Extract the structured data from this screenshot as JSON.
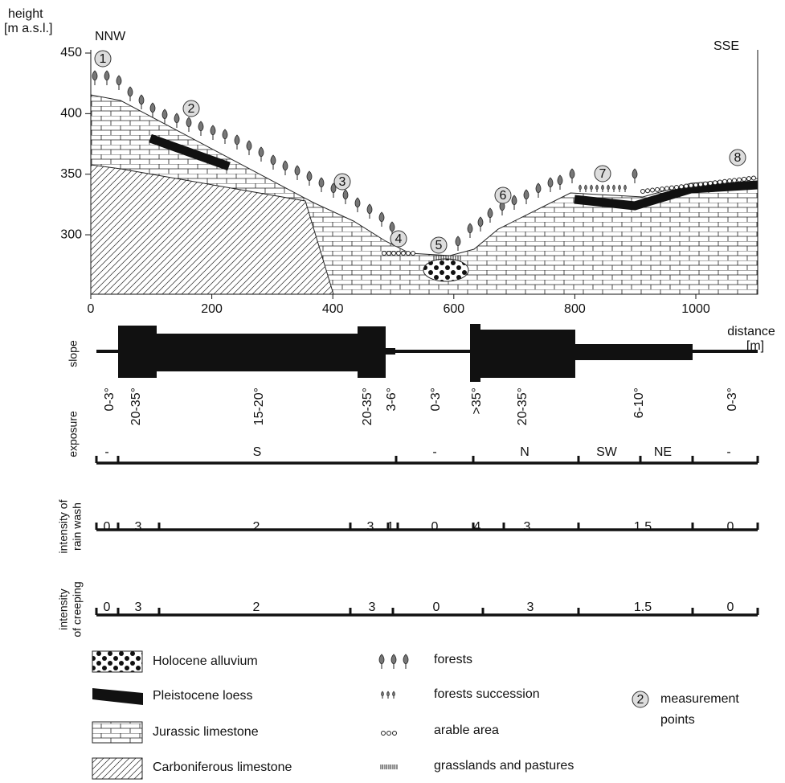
{
  "profile": {
    "y_axis_label": [
      "height",
      "[m a.s.l.]"
    ],
    "yticks": [
      300,
      350,
      400,
      450
    ],
    "xticks": [
      0,
      200,
      400,
      600,
      800,
      1000
    ],
    "x_axis_label": [
      "distance",
      "[m]"
    ],
    "directions": [
      "NNW",
      "SSE"
    ],
    "points": [
      1,
      2,
      3,
      4,
      5,
      6,
      7,
      8
    ]
  },
  "slope": {
    "label": "slope",
    "classes": [
      "0-3°",
      "20-35°",
      "15-20°",
      "20-35°",
      "3-6°",
      "0-3°",
      ">35°",
      "20-35°",
      "6-10°",
      "0-3°"
    ]
  },
  "exposure": {
    "label": "exposure",
    "values": [
      "-",
      "S",
      "-",
      "N",
      "SW",
      "NE",
      "-"
    ]
  },
  "rain_wash": {
    "label": [
      "intensity of",
      "rain wash"
    ],
    "values": [
      0,
      3,
      2,
      3,
      1,
      0,
      4,
      3,
      1.5,
      0
    ]
  },
  "creeping": {
    "label": [
      "intensity",
      "of creeping"
    ],
    "values": [
      0,
      3,
      2,
      3,
      0,
      3,
      1.5,
      0
    ]
  },
  "legend": {
    "geology": [
      "Holocene alluvium",
      "Pleistocene loess",
      "Jurassic limestone",
      "Carboniferous limestone"
    ],
    "land_use": [
      "forests",
      "forests succession",
      "arable area",
      "grasslands and pastures"
    ],
    "point_symbol": 2,
    "point_label": [
      "measurement",
      "points"
    ]
  }
}
